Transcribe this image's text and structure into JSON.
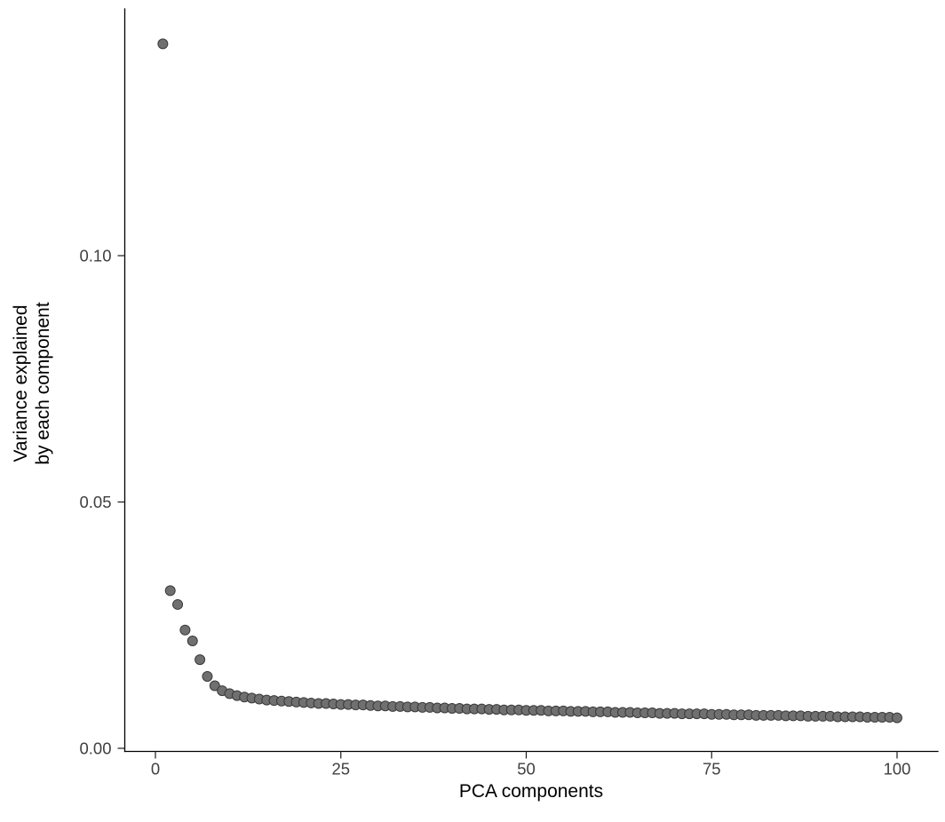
{
  "figure": {
    "background": "#FFFFFF"
  },
  "chart_data": {
    "type": "scatter",
    "title": "",
    "xlabel": "PCA components",
    "ylabel": "Variance explained\nby each component",
    "ylabel_lines": [
      "Variance explained",
      "by each component"
    ],
    "xlim": [
      0,
      100
    ],
    "ylim": [
      0,
      0.145
    ],
    "x_ticks": [
      0,
      25,
      50,
      75,
      100
    ],
    "x_tick_labels": [
      "0",
      "25",
      "50",
      "75",
      "100"
    ],
    "y_ticks": [
      0.0,
      0.05,
      0.1
    ],
    "y_tick_labels": [
      "0.00",
      "0.05",
      "0.10"
    ],
    "grid": false,
    "legend": "none",
    "point_fill": "#707070",
    "point_stroke": "#3A3A3A",
    "axis_color": "#000000",
    "tick_label_color": "#404040",
    "x": [
      1,
      2,
      3,
      4,
      5,
      6,
      7,
      8,
      9,
      10,
      11,
      12,
      13,
      14,
      15,
      16,
      17,
      18,
      19,
      20,
      21,
      22,
      23,
      24,
      25,
      26,
      27,
      28,
      29,
      30,
      31,
      32,
      33,
      34,
      35,
      36,
      37,
      38,
      39,
      40,
      41,
      42,
      43,
      44,
      45,
      46,
      47,
      48,
      49,
      50,
      51,
      52,
      53,
      54,
      55,
      56,
      57,
      58,
      59,
      60,
      61,
      62,
      63,
      64,
      65,
      66,
      67,
      68,
      69,
      70,
      71,
      72,
      73,
      74,
      75,
      76,
      77,
      78,
      79,
      80,
      81,
      82,
      83,
      84,
      85,
      86,
      87,
      88,
      89,
      90,
      91,
      92,
      93,
      94,
      95,
      96,
      97,
      98,
      99,
      100
    ],
    "values": [
      0.143,
      0.032,
      0.0292,
      0.024,
      0.0218,
      0.018,
      0.0146,
      0.0127,
      0.0117,
      0.0111,
      0.0107,
      0.0104,
      0.0102,
      0.01,
      0.0098,
      0.0097,
      0.0096,
      0.0095,
      0.0094,
      0.0093,
      0.0092,
      0.0091,
      0.0091,
      0.009,
      0.0089,
      0.0089,
      0.0088,
      0.0088,
      0.0087,
      0.0086,
      0.0086,
      0.0085,
      0.0085,
      0.0084,
      0.0084,
      0.0083,
      0.0083,
      0.0082,
      0.0082,
      0.0081,
      0.0081,
      0.008,
      0.008,
      0.008,
      0.0079,
      0.0079,
      0.0078,
      0.0078,
      0.0078,
      0.0077,
      0.0077,
      0.0077,
      0.0076,
      0.0076,
      0.0076,
      0.0075,
      0.0075,
      0.0075,
      0.0074,
      0.0074,
      0.0074,
      0.0073,
      0.0073,
      0.0073,
      0.0072,
      0.0072,
      0.0072,
      0.0071,
      0.0071,
      0.0071,
      0.007,
      0.007,
      0.007,
      0.007,
      0.0069,
      0.0069,
      0.0069,
      0.0068,
      0.0068,
      0.0068,
      0.0067,
      0.0067,
      0.0067,
      0.0067,
      0.0066,
      0.0066,
      0.0066,
      0.0065,
      0.0065,
      0.0065,
      0.0065,
      0.0064,
      0.0064,
      0.0064,
      0.0064,
      0.0063,
      0.0063,
      0.0063,
      0.0063,
      0.0062
    ]
  }
}
